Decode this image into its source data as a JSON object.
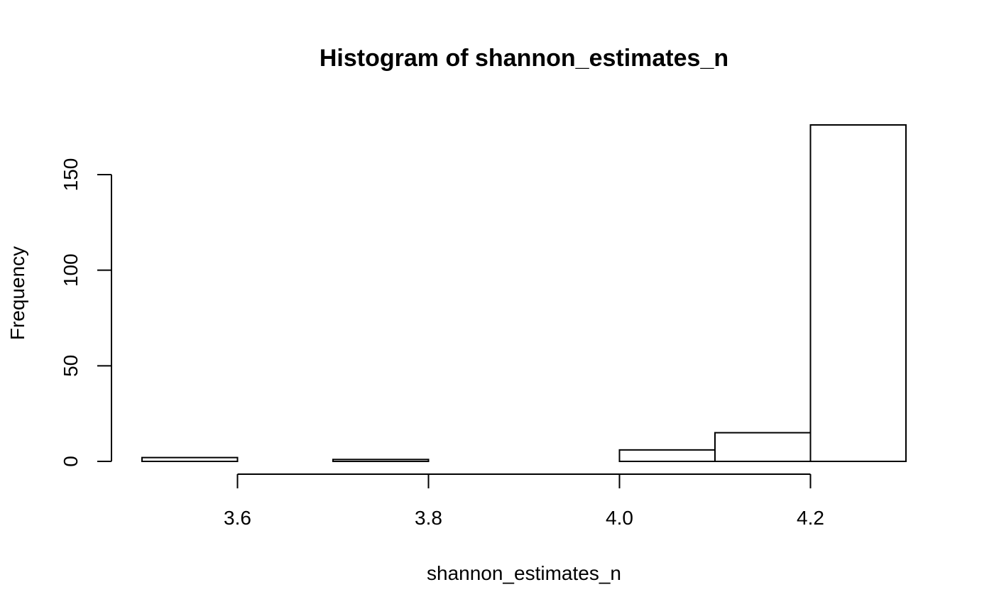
{
  "chart_data": {
    "type": "bar",
    "title": "Histogram of shannon_estimates_n",
    "xlabel": "shannon_estimates_n",
    "ylabel": "Frequency",
    "bins": [
      {
        "x0": 3.5,
        "x1": 3.6,
        "count": 2
      },
      {
        "x0": 3.6,
        "x1": 3.7,
        "count": 0
      },
      {
        "x0": 3.7,
        "x1": 3.8,
        "count": 1
      },
      {
        "x0": 3.8,
        "x1": 3.9,
        "count": 0
      },
      {
        "x0": 3.9,
        "x1": 4.0,
        "count": 0
      },
      {
        "x0": 4.0,
        "x1": 4.1,
        "count": 6
      },
      {
        "x0": 4.1,
        "x1": 4.2,
        "count": 15
      },
      {
        "x0": 4.2,
        "x1": 4.3,
        "count": 176
      }
    ],
    "xticks": [
      3.6,
      3.8,
      4.0,
      4.2
    ],
    "xtick_labels": [
      "3.6",
      "3.8",
      "4.0",
      "4.2"
    ],
    "yticks": [
      0,
      50,
      100,
      150
    ],
    "ytick_labels": [
      "0",
      "50",
      "100",
      "150"
    ],
    "xlim": [
      3.5,
      4.3
    ],
    "ylim": [
      0,
      176
    ],
    "grid": false,
    "legend": "none",
    "bar_fill": "#ffffff",
    "bar_stroke": "#000000"
  }
}
